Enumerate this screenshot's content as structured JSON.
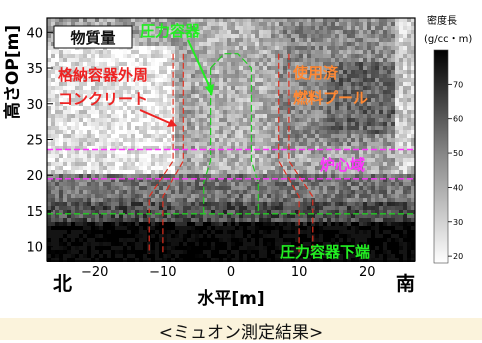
{
  "chart_data": {
    "type": "heatmap",
    "title": "",
    "xlabel": "水平[m]",
    "ylabel": "高さOP[m]",
    "xlim": [
      -27,
      27
    ],
    "ylim": [
      8,
      42
    ],
    "x_ticks": [
      -20,
      -10,
      0,
      10,
      20
    ],
    "y_ticks": [
      10,
      15,
      20,
      25,
      30,
      35,
      40
    ],
    "x_tick_labels": [
      "−20",
      "−10",
      "0",
      "10",
      "20"
    ],
    "y_tick_labels": [
      "10",
      "15",
      "20",
      "25",
      "30",
      "35",
      "40"
    ],
    "colorbar": {
      "title": "密度長",
      "unit": "(g/cc・m)",
      "ticks": [
        20,
        30,
        40,
        50,
        60,
        70
      ],
      "tick_labels": [
        "20",
        "30",
        "40",
        "50",
        "60",
        "70"
      ],
      "range": [
        18,
        80
      ],
      "low_color": "#ffffff",
      "high_color": "#000000"
    },
    "direction_left": "北",
    "direction_right": "南",
    "horizontal_lines": [
      {
        "y": 23.6,
        "color": "#ff33ff",
        "style": "dashed"
      },
      {
        "y": 19.5,
        "color": "#ff33ff",
        "style": "dashed"
      },
      {
        "y": 14.6,
        "color": "#22cc22",
        "style": "dashed"
      }
    ],
    "annotations": [
      {
        "text": "物質量",
        "color": "#111111",
        "boxed": true
      },
      {
        "text": "圧力容器",
        "color": "#22ee22"
      },
      {
        "text": "格納容器外周",
        "color": "#ee2222"
      },
      {
        "text": "コンクリート",
        "color": "#ee2222"
      },
      {
        "text": "使用済",
        "color": "#ff8833"
      },
      {
        "text": "燃料プール",
        "color": "#ff8833"
      },
      {
        "text": "炉心域",
        "color": "#ff33ff"
      },
      {
        "text": "圧力容器下端",
        "color": "#22ee22"
      }
    ]
  },
  "caption": "<ミュオン測定結果>"
}
